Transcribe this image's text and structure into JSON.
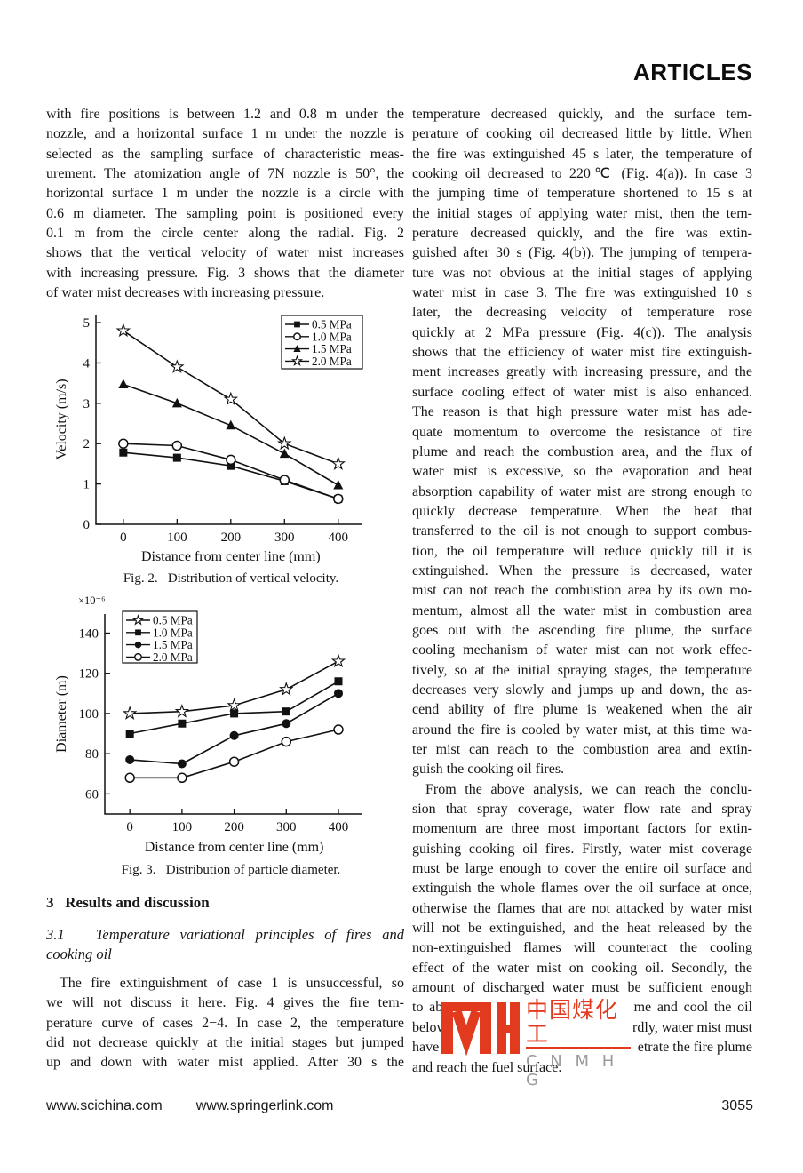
{
  "header": {
    "label": "ARTICLES"
  },
  "left_column": {
    "para1_lines": [
      "with fire positions is between 1.2 and 0.8 m under the",
      "nozzle, and a horizontal surface 1 m under the nozzle is",
      "selected as the sampling surface of characteristic meas-",
      "urement. The atomization angle of 7N nozzle is 50°, the",
      "horizontal surface 1 m under the nozzle is a circle with",
      "0.6 m diameter. The sampling point is positioned every",
      "0.1 m from the circle center along the radial. Fig. 2",
      "shows that the vertical velocity of water mist increases",
      "with increasing pressure. Fig. 3 shows that the diameter",
      "of water mist decreases with increasing pressure."
    ],
    "section_heading": "3   Results and discussion",
    "subsection_lines": [
      "3.1   Temperature variational principles of fires and",
      "cooking oil"
    ],
    "para2_lines": [
      "The fire extinguishment of case 1 is unsuccessful, so",
      "we will not discuss it here. Fig. 4 gives the fire tem-",
      "perature curve of cases 2−4. In case 2, the temperature",
      "did not decrease quickly at the initial stages but jumped",
      "up and down with water mist applied. After 30 s the"
    ]
  },
  "right_column": {
    "para1_lines": [
      "temperature decreased quickly, and the surface tem-",
      "perature of cooking oil decreased little by little. When",
      "the fire was extinguished 45 s later, the temperature of",
      "cooking oil decreased to 220℃ (Fig. 4(a)). In case 3",
      "the jumping time of temperature shortened to 15 s at",
      "the initial stages of applying water mist, then the tem-",
      "perature decreased quickly, and the fire was extin-",
      "guished after 30 s (Fig. 4(b)). The jumping of tempera-",
      "ture was not obvious at the initial stages of applying",
      "water mist in case 3. The fire was extinguished 10 s",
      "later, the decreasing velocity of temperature rose",
      "quickly at 2 MPa pressure (Fig. 4(c)). The analysis",
      "shows that the efficiency of water mist fire extinguish-",
      "ment increases greatly with increasing pressure, and the",
      "surface cooling effect of water mist is also enhanced.",
      "The reason is that high pressure water mist has ade-",
      "quate momentum to overcome the resistance of fire",
      "plume and reach the combustion area, and the flux of",
      "water mist is excessive, so the evaporation and heat",
      "absorption capability of water mist are strong enough to",
      "quickly decrease temperature. When the heat that",
      "transferred to the oil is not enough to support combus-",
      "tion, the oil temperature will reduce quickly till it is",
      "extinguished. When the pressure is decreased, water",
      "mist can not reach the combustion area by its own mo-",
      "mentum, almost all the water mist in combustion area",
      "goes out with the ascending fire plume, the surface",
      "cooling mechanism of water mist can not work effec-",
      "tively, so at the initial spraying stages, the temperature",
      "decreases very slowly and jumps up and down, the as-",
      "cend ability of fire plume is weakened when the air",
      "around the fire is cooled by water mist, at this time wa-",
      "ter mist can reach to the combustion area and extin-",
      "guish the cooking oil fires."
    ],
    "para2_lines": [
      "From the above analysis, we can reach the conclu-",
      "sion that spray coverage, water flow rate and spray",
      "momentum are three most important factors for extin-",
      "guishing cooking oil fires. Firstly, water mist coverage",
      "must be large enough to cover the entire oil surface and",
      "extinguish the whole flames over the oil surface at once,",
      "otherwise the flames that are not attacked by water mist",
      "will not be extinguished, and the heat released by the",
      "non-extinguished flames will counteract the cooling",
      "effect of the water mist on cooking oil. Secondly, the",
      "amount of discharged water must be sufficient enough",
      "to absorb sufficient heat from the flame and cool the oil"
    ],
    "covered_line1": {
      "left": "below",
      "right": "rdly, water mist must"
    },
    "covered_line2": {
      "left": "have",
      "right": "etrate the fire plume"
    },
    "last_line": "and reach the fuel surface."
  },
  "watermark": {
    "chinese": "中国煤化工",
    "latin": "C N M H G",
    "logo_color": "#e23a1f",
    "latin_color": "#9a9a9a"
  },
  "footer": {
    "link1": "www.scichina.com",
    "link2": "www.springerlink.com",
    "page": "3055"
  },
  "chart_data": [
    {
      "type": "line",
      "title": "",
      "xlabel": "Distance from center line (mm)",
      "ylabel": "Velocity (m/s)",
      "x": [
        0,
        100,
        200,
        300,
        400
      ],
      "xticks": [
        0,
        100,
        200,
        300,
        400
      ],
      "yticks": [
        0,
        1,
        2,
        3,
        4,
        5
      ],
      "xlim": [
        -51,
        445
      ],
      "ylim": [
        0,
        5.2
      ],
      "grid": false,
      "legend_position": "top-right",
      "series": [
        {
          "name": "0.5 MPa",
          "marker": "filled-square",
          "values": [
            1.78,
            1.65,
            1.45,
            1.07,
            0.63
          ]
        },
        {
          "name": "1.0 MPa",
          "marker": "open-circle",
          "values": [
            2.0,
            1.95,
            1.6,
            1.1,
            0.63
          ]
        },
        {
          "name": "1.5 MPa",
          "marker": "filled-triangle",
          "values": [
            3.47,
            3.0,
            2.45,
            1.75,
            0.97
          ]
        },
        {
          "name": "2.0 MPa",
          "marker": "open-star",
          "values": [
            4.8,
            3.9,
            3.1,
            2.0,
            1.5
          ]
        }
      ],
      "caption": "Fig. 2.   Distribution of vertical velocity."
    },
    {
      "type": "line",
      "title": "",
      "xlabel": "Distance from center line (mm)",
      "ylabel": "Diameter (m)",
      "y_multiplier_label": "×10⁻⁶",
      "x": [
        0,
        100,
        200,
        300,
        400
      ],
      "xticks": [
        0,
        100,
        200,
        300,
        400
      ],
      "yticks": [
        60,
        80,
        100,
        120,
        140
      ],
      "xlim": [
        -48,
        446
      ],
      "ylim": [
        50,
        149.5
      ],
      "grid": false,
      "legend_position": "top-left",
      "series": [
        {
          "name": "0.5 MPa",
          "marker": "open-star",
          "values": [
            100,
            101,
            104,
            112,
            126
          ]
        },
        {
          "name": "1.0 MPa",
          "marker": "filled-square",
          "values": [
            90,
            95,
            100,
            101,
            116
          ]
        },
        {
          "name": "1.5 MPa",
          "marker": "filled-circle",
          "values": [
            77,
            75,
            89,
            95,
            110
          ]
        },
        {
          "name": "2.0 MPa",
          "marker": "open-circle",
          "values": [
            68,
            68,
            76,
            86,
            92
          ]
        }
      ],
      "caption": "Fig. 3.   Distribution of particle diameter."
    }
  ]
}
